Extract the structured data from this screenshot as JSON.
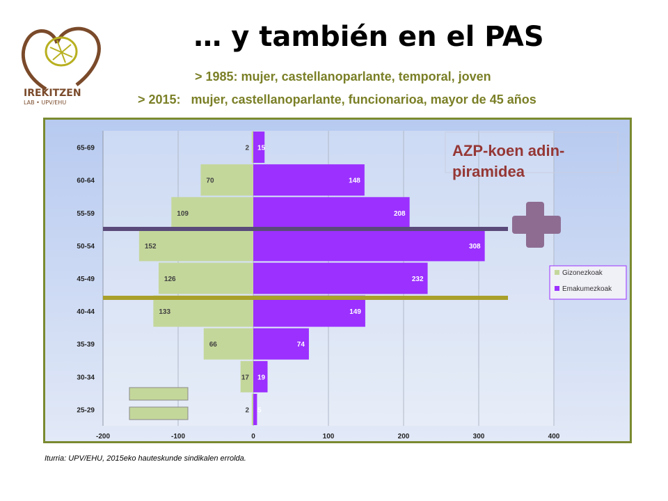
{
  "title": "… y también en el PAS",
  "subtitle_1985": "> 1985: mujer, castellanoparlante, temporal, joven",
  "subtitle_2015": "> 2015:   mujer, castellanoparlante, funcionarioa, mayor de 45 años",
  "logo": {
    "name": "IREKITZEN",
    "tagline": "LAB • UPV/EHU"
  },
  "source_note": "Iturria: UPV/EHU, 2015eko hauteskunde sindikalen errolda.",
  "chart_data": {
    "type": "bar",
    "orientation": "horizontal",
    "title": "AZP-koen adin-piramidea",
    "title_lines": [
      "AZP-koen adin-",
      "piramidea"
    ],
    "categories": [
      "65-69",
      "60-64",
      "55-59",
      "50-54",
      "45-49",
      "40-44",
      "35-39",
      "30-34",
      "25-29"
    ],
    "series": [
      {
        "name": "Gizonezkoak",
        "values": [
          2,
          70,
          109,
          152,
          126,
          133,
          66,
          17,
          2
        ],
        "plot_sign": -1,
        "color": "#c4d79b"
      },
      {
        "name": "Emakumezkoak",
        "values": [
          15,
          148,
          208,
          308,
          232,
          149,
          74,
          19,
          5
        ],
        "plot_sign": 1,
        "color": "#9b30ff"
      }
    ],
    "xlim": [
      -200,
      400
    ],
    "xticks": [
      -200,
      -100,
      0,
      100,
      200,
      300,
      400
    ],
    "grid": true,
    "legend_position": "right",
    "colors": {
      "label_dark": "#404040",
      "label_light": "#ffffff",
      "title": "#953735",
      "line_1985": "#5a4a7a",
      "line_2015": "#a8a02a",
      "plus": "#8e6c92",
      "equals": "#c4d79b"
    }
  }
}
